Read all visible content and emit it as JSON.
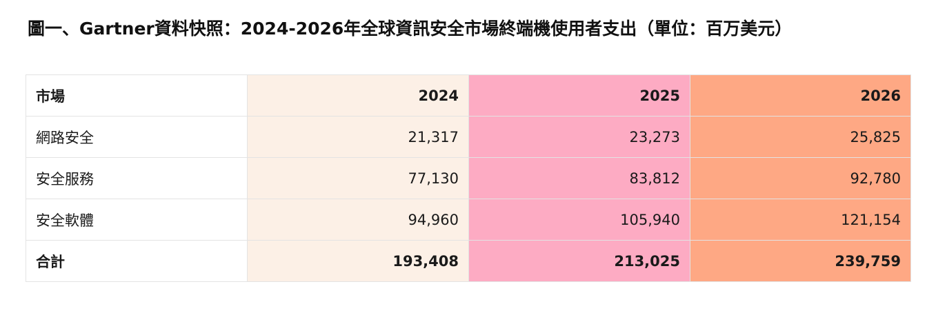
{
  "title": "圖一、Gartner資料快照：2024-2026年全球資訊安全市場終端機使用者支出（單位：百万美元）",
  "table": {
    "headers": [
      "市場",
      "2024",
      "2025",
      "2026"
    ],
    "rows": [
      [
        "網路安全",
        "21,317",
        "23,273",
        "25,825"
      ],
      [
        "安全服務",
        "77,130",
        "83,812",
        "92,780"
      ],
      [
        "安全軟體",
        "94,960",
        "105,940",
        "121,154"
      ],
      [
        "合計",
        "193,408",
        "213,025",
        "239,759"
      ]
    ]
  },
  "colors": {
    "col_2024": "#fcf0e6",
    "col_2025": "#fdabc3",
    "col_2026": "#fea884"
  }
}
